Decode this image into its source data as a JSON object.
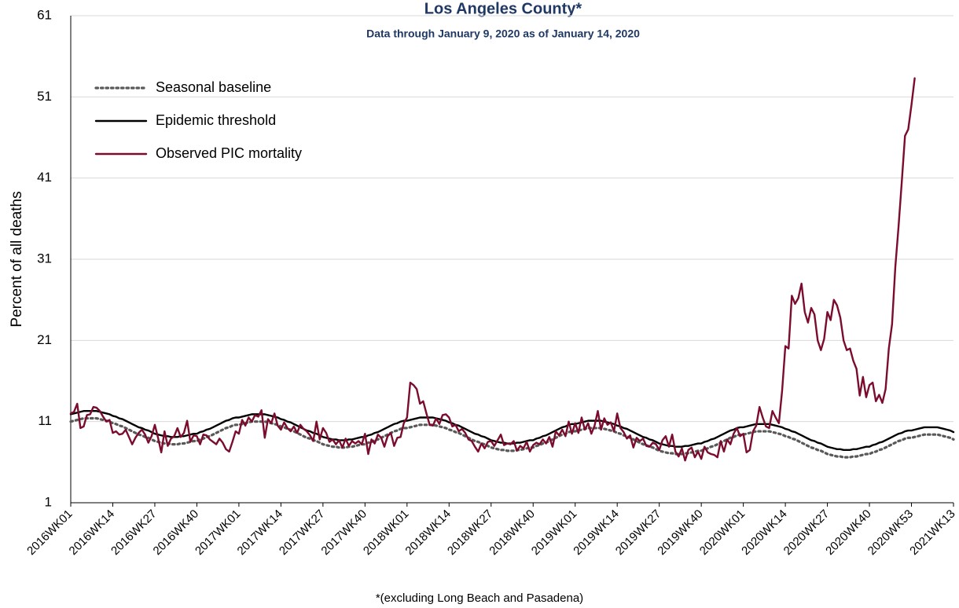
{
  "chart_data": {
    "type": "line",
    "title": "Los Angeles County*",
    "subtitle": "Data through January 9, 2020 as of January 14, 2020",
    "y_label": "Percent of all deaths",
    "footnote": "*(excluding Long Beach and Pasadena)",
    "ylim": [
      1,
      61
    ],
    "yticks": [
      1,
      11,
      21,
      31,
      41,
      51,
      61
    ],
    "grid": true,
    "legend": "top-left",
    "categories": [
      "2016WK01",
      null,
      null,
      null,
      null,
      null,
      null,
      null,
      null,
      null,
      null,
      null,
      null,
      "2016WK14",
      null,
      null,
      null,
      null,
      null,
      null,
      null,
      null,
      null,
      null,
      null,
      null,
      "2016WK27",
      null,
      null,
      null,
      null,
      null,
      null,
      null,
      null,
      null,
      null,
      null,
      null,
      "2016WK40",
      null,
      null,
      null,
      null,
      null,
      null,
      null,
      null,
      null,
      null,
      null,
      null,
      "2017WK01",
      null,
      null,
      null,
      null,
      null,
      null,
      null,
      null,
      null,
      null,
      null,
      null,
      "2017WK14",
      null,
      null,
      null,
      null,
      null,
      null,
      null,
      null,
      null,
      null,
      null,
      null,
      "2017WK27",
      null,
      null,
      null,
      null,
      null,
      null,
      null,
      null,
      null,
      null,
      null,
      null,
      "2017WK40",
      null,
      null,
      null,
      null,
      null,
      null,
      null,
      null,
      null,
      null,
      null,
      null,
      "2018WK01",
      null,
      null,
      null,
      null,
      null,
      null,
      null,
      null,
      null,
      null,
      null,
      null,
      "2018WK14",
      null,
      null,
      null,
      null,
      null,
      null,
      null,
      null,
      null,
      null,
      null,
      null,
      "2018WK27",
      null,
      null,
      null,
      null,
      null,
      null,
      null,
      null,
      null,
      null,
      null,
      null,
      "2018WK40",
      null,
      null,
      null,
      null,
      null,
      null,
      null,
      null,
      null,
      null,
      null,
      null,
      "2019WK01",
      null,
      null,
      null,
      null,
      null,
      null,
      null,
      null,
      null,
      null,
      null,
      null,
      "2019WK14",
      null,
      null,
      null,
      null,
      null,
      null,
      null,
      null,
      null,
      null,
      null,
      null,
      "2019WK27",
      null,
      null,
      null,
      null,
      null,
      null,
      null,
      null,
      null,
      null,
      null,
      null,
      "2019WK40",
      null,
      null,
      null,
      null,
      null,
      null,
      null,
      null,
      null,
      null,
      null,
      null,
      "2020WK01",
      null,
      null,
      null,
      null,
      null,
      null,
      null,
      null,
      null,
      null,
      null,
      null,
      "2020WK14",
      null,
      null,
      null,
      null,
      null,
      null,
      null,
      null,
      null,
      null,
      null,
      null,
      "2020WK27",
      null,
      null,
      null,
      null,
      null,
      null,
      null,
      null,
      null,
      null,
      null,
      null,
      "2020WK40",
      null,
      null,
      null,
      null,
      null,
      null,
      null,
      null,
      null,
      null,
      null,
      null,
      "2020WK53",
      null,
      null,
      null,
      null,
      null,
      null,
      null,
      null,
      null,
      null,
      null,
      null,
      "2021WK13"
    ],
    "series": [
      {
        "name": "Seasonal baseline",
        "color": "#595959",
        "style": "dotted",
        "values": [
          11.0,
          11.1,
          11.2,
          11.3,
          11.4,
          11.4,
          11.4,
          11.4,
          11.4,
          11.3,
          11.2,
          11.1,
          11.0,
          10.8,
          10.7,
          10.5,
          10.4,
          10.2,
          10.0,
          9.8,
          9.6,
          9.4,
          9.3,
          9.1,
          9.0,
          8.8,
          8.6,
          8.5,
          8.4,
          8.3,
          8.3,
          8.2,
          8.2,
          8.2,
          8.3,
          8.3,
          8.4,
          8.5,
          8.6,
          8.6,
          8.8,
          8.9,
          9.1,
          9.2,
          9.4,
          9.6,
          9.8,
          10.0,
          10.2,
          10.3,
          10.5,
          10.6,
          10.6,
          10.7,
          10.8,
          10.9,
          11.0,
          11.0,
          11.0,
          11.0,
          11.0,
          10.9,
          10.8,
          10.7,
          10.6,
          10.4,
          10.3,
          10.1,
          10.0,
          9.8,
          9.6,
          9.4,
          9.2,
          9.0,
          8.9,
          8.7,
          8.6,
          8.4,
          8.2,
          8.1,
          8.0,
          7.9,
          7.9,
          7.8,
          7.8,
          7.8,
          7.9,
          7.9,
          8.0,
          8.1,
          8.2,
          8.2,
          8.4,
          8.5,
          8.7,
          8.8,
          9.0,
          9.2,
          9.4,
          9.6,
          9.8,
          9.9,
          10.1,
          10.2,
          10.2,
          10.3,
          10.4,
          10.5,
          10.6,
          10.6,
          10.6,
          10.6,
          10.6,
          10.5,
          10.4,
          10.3,
          10.2,
          10.0,
          9.9,
          9.7,
          9.6,
          9.4,
          9.2,
          9.0,
          8.8,
          8.6,
          8.5,
          8.3,
          8.2,
          8.0,
          7.8,
          7.7,
          7.6,
          7.5,
          7.5,
          7.4,
          7.4,
          7.4,
          7.5,
          7.5,
          7.6,
          7.7,
          7.8,
          7.8,
          8.0,
          8.1,
          8.3,
          8.4,
          8.6,
          8.8,
          9.0,
          9.2,
          9.4,
          9.5,
          9.7,
          9.8,
          9.8,
          9.9,
          10.0,
          10.1,
          10.2,
          10.2,
          10.2,
          10.2,
          10.2,
          10.1,
          10.0,
          9.9,
          9.8,
          9.6,
          9.5,
          9.3,
          9.2,
          9.0,
          8.8,
          8.6,
          8.4,
          8.2,
          8.1,
          7.9,
          7.8,
          7.6,
          7.4,
          7.3,
          7.2,
          7.1,
          7.1,
          7.0,
          7.0,
          7.0,
          7.1,
          7.1,
          7.2,
          7.3,
          7.4,
          7.4,
          7.6,
          7.7,
          7.9,
          8.0,
          8.2,
          8.4,
          8.6,
          8.8,
          9.0,
          9.1,
          9.3,
          9.4,
          9.4,
          9.5,
          9.6,
          9.7,
          9.8,
          9.8,
          9.8,
          9.8,
          9.8,
          9.7,
          9.6,
          9.5,
          9.4,
          9.2,
          9.1,
          8.9,
          8.8,
          8.6,
          8.4,
          8.2,
          8.0,
          7.8,
          7.7,
          7.5,
          7.4,
          7.2,
          7.0,
          6.9,
          6.8,
          6.7,
          6.7,
          6.6,
          6.6,
          6.6,
          6.7,
          6.7,
          6.8,
          6.9,
          7.0,
          7.0,
          7.2,
          7.3,
          7.5,
          7.6,
          7.8,
          8.0,
          8.2,
          8.4,
          8.6,
          8.7,
          8.9,
          9.0,
          9.0,
          9.1,
          9.2,
          9.3,
          9.4,
          9.4,
          9.4,
          9.4,
          9.4,
          9.3,
          9.2,
          9.1,
          9.0,
          8.8
        ]
      },
      {
        "name": "Epidemic threshold",
        "color": "#000000",
        "style": "solid",
        "values": [
          11.9,
          12.0,
          12.1,
          12.2,
          12.3,
          12.3,
          12.3,
          12.3,
          12.3,
          12.2,
          12.1,
          12.0,
          11.9,
          11.7,
          11.6,
          11.4,
          11.3,
          11.1,
          10.9,
          10.7,
          10.5,
          10.3,
          10.2,
          10.0,
          9.9,
          9.7,
          9.5,
          9.4,
          9.3,
          9.2,
          9.2,
          9.1,
          9.1,
          9.1,
          9.2,
          9.2,
          9.3,
          9.4,
          9.5,
          9.5,
          9.7,
          9.8,
          10.0,
          10.1,
          10.3,
          10.5,
          10.7,
          10.9,
          11.1,
          11.2,
          11.4,
          11.5,
          11.5,
          11.6,
          11.7,
          11.8,
          11.9,
          11.9,
          11.9,
          11.9,
          11.9,
          11.8,
          11.7,
          11.6,
          11.5,
          11.3,
          11.2,
          11.0,
          10.9,
          10.7,
          10.5,
          10.3,
          10.1,
          9.9,
          9.8,
          9.6,
          9.5,
          9.3,
          9.1,
          9.0,
          8.9,
          8.8,
          8.8,
          8.7,
          8.7,
          8.7,
          8.8,
          8.8,
          8.9,
          9.0,
          9.1,
          9.1,
          9.3,
          9.4,
          9.6,
          9.7,
          9.9,
          10.1,
          10.3,
          10.5,
          10.7,
          10.8,
          11.0,
          11.1,
          11.1,
          11.2,
          11.3,
          11.4,
          11.5,
          11.5,
          11.5,
          11.5,
          11.5,
          11.4,
          11.3,
          11.2,
          11.1,
          10.9,
          10.8,
          10.6,
          10.5,
          10.3,
          10.1,
          9.9,
          9.7,
          9.5,
          9.4,
          9.2,
          9.1,
          8.9,
          8.7,
          8.6,
          8.5,
          8.4,
          8.4,
          8.3,
          8.3,
          8.3,
          8.4,
          8.4,
          8.5,
          8.6,
          8.7,
          8.7,
          8.9,
          9.0,
          9.2,
          9.3,
          9.5,
          9.7,
          9.9,
          10.1,
          10.3,
          10.4,
          10.6,
          10.7,
          10.7,
          10.8,
          10.9,
          11.0,
          11.1,
          11.1,
          11.1,
          11.1,
          11.1,
          11.0,
          10.9,
          10.8,
          10.7,
          10.5,
          10.4,
          10.2,
          10.1,
          9.9,
          9.7,
          9.5,
          9.3,
          9.1,
          9.0,
          8.8,
          8.7,
          8.5,
          8.3,
          8.2,
          8.1,
          8.0,
          8.0,
          7.9,
          7.9,
          7.9,
          8.0,
          8.0,
          8.1,
          8.2,
          8.3,
          8.3,
          8.5,
          8.6,
          8.8,
          8.9,
          9.1,
          9.3,
          9.5,
          9.7,
          9.9,
          10.0,
          10.2,
          10.3,
          10.3,
          10.4,
          10.5,
          10.6,
          10.7,
          10.7,
          10.7,
          10.7,
          10.7,
          10.6,
          10.5,
          10.4,
          10.3,
          10.1,
          10.0,
          9.8,
          9.7,
          9.5,
          9.3,
          9.1,
          8.9,
          8.7,
          8.6,
          8.4,
          8.3,
          8.1,
          7.9,
          7.8,
          7.7,
          7.6,
          7.6,
          7.5,
          7.5,
          7.5,
          7.6,
          7.6,
          7.7,
          7.8,
          7.9,
          7.9,
          8.1,
          8.2,
          8.4,
          8.5,
          8.7,
          8.9,
          9.1,
          9.3,
          9.5,
          9.6,
          9.8,
          9.9,
          9.9,
          10.0,
          10.1,
          10.2,
          10.3,
          10.3,
          10.3,
          10.3,
          10.3,
          10.2,
          10.1,
          10.0,
          9.9,
          9.7
        ]
      },
      {
        "name": "Observed PIC mortality",
        "color": "#7b0c2e",
        "style": "solid",
        "values": [
          12.0,
          12.2,
          13.2,
          10.2,
          10.4,
          11.8,
          11.9,
          12.8,
          12.7,
          12.3,
          11.6,
          11.0,
          11.2,
          9.6,
          9.8,
          9.4,
          9.5,
          10.0,
          9.1,
          8.2,
          9.0,
          9.6,
          10.0,
          9.4,
          8.4,
          9.2,
          10.6,
          9.0,
          7.2,
          9.8,
          8.0,
          8.9,
          9.2,
          10.2,
          9.1,
          9.6,
          11.1,
          8.5,
          9.3,
          9.2,
          8.2,
          9.4,
          9.3,
          8.8,
          8.5,
          8.2,
          8.9,
          8.4,
          7.6,
          7.3,
          8.5,
          9.8,
          9.5,
          11.2,
          10.5,
          11.5,
          11.0,
          11.8,
          11.6,
          12.4,
          9.0,
          11.3,
          10.8,
          12.0,
          10.5,
          10.0,
          10.9,
          10.2,
          9.8,
          10.4,
          9.6,
          10.6,
          10.1,
          9.8,
          9.3,
          8.6,
          11.0,
          8.8,
          10.2,
          9.6,
          8.5,
          8.8,
          8.2,
          8.7,
          7.8,
          8.9,
          8.0,
          8.6,
          8.3,
          8.6,
          8.2,
          9.5,
          7.0,
          8.8,
          8.3,
          9.4,
          9.0,
          7.9,
          9.2,
          9.6,
          8.0,
          9.0,
          9.1,
          10.8,
          11.5,
          15.8,
          15.5,
          15.0,
          13.2,
          13.5,
          12.0,
          10.6,
          10.5,
          11.4,
          10.7,
          11.8,
          11.9,
          11.5,
          10.4,
          10.6,
          9.8,
          10.1,
          9.6,
          8.8,
          8.6,
          7.9,
          7.3,
          8.3,
          7.7,
          8.5,
          8.6,
          8.0,
          8.7,
          9.4,
          8.1,
          8.3,
          8.2,
          8.6,
          7.4,
          8.0,
          7.7,
          8.5,
          7.3,
          8.1,
          8.4,
          8.2,
          8.8,
          8.3,
          9.1,
          7.9,
          9.8,
          9.3,
          10.0,
          9.2,
          11.0,
          9.5,
          10.8,
          9.6,
          11.5,
          10.0,
          10.8,
          9.5,
          10.5,
          12.3,
          10.0,
          11.4,
          10.6,
          10.9,
          9.8,
          12.0,
          10.2,
          9.7,
          8.9,
          9.3,
          7.8,
          9.0,
          8.6,
          8.9,
          8.0,
          7.9,
          8.4,
          8.2,
          7.5,
          8.7,
          9.2,
          7.9,
          9.4,
          7.3,
          6.7,
          7.7,
          6.2,
          7.5,
          7.8,
          6.6,
          7.3,
          6.4,
          7.9,
          7.2,
          7.0,
          6.9,
          6.6,
          8.6,
          7.3,
          8.8,
          8.2,
          9.5,
          10.2,
          9.2,
          9.5,
          7.2,
          7.5,
          9.8,
          10.5,
          12.8,
          11.5,
          10.4,
          10.2,
          12.3,
          11.5,
          10.8,
          14.8,
          20.3,
          20.0,
          26.5,
          25.5,
          26.2,
          28.0,
          24.5,
          23.2,
          25.0,
          24.2,
          21.0,
          19.8,
          21.2,
          24.5,
          23.5,
          26.0,
          25.3,
          23.8,
          21.0,
          19.8,
          20.0,
          18.5,
          17.5,
          14.2,
          16.5,
          14.0,
          15.5,
          15.8,
          13.5,
          14.3,
          13.3,
          15.0,
          20.0,
          23.0,
          30.0,
          35.0,
          40.5,
          46.2,
          47.0,
          50.0,
          53.3,
          null,
          null,
          null,
          null,
          null,
          null,
          null,
          null,
          null,
          null,
          null,
          null
        ]
      }
    ]
  }
}
